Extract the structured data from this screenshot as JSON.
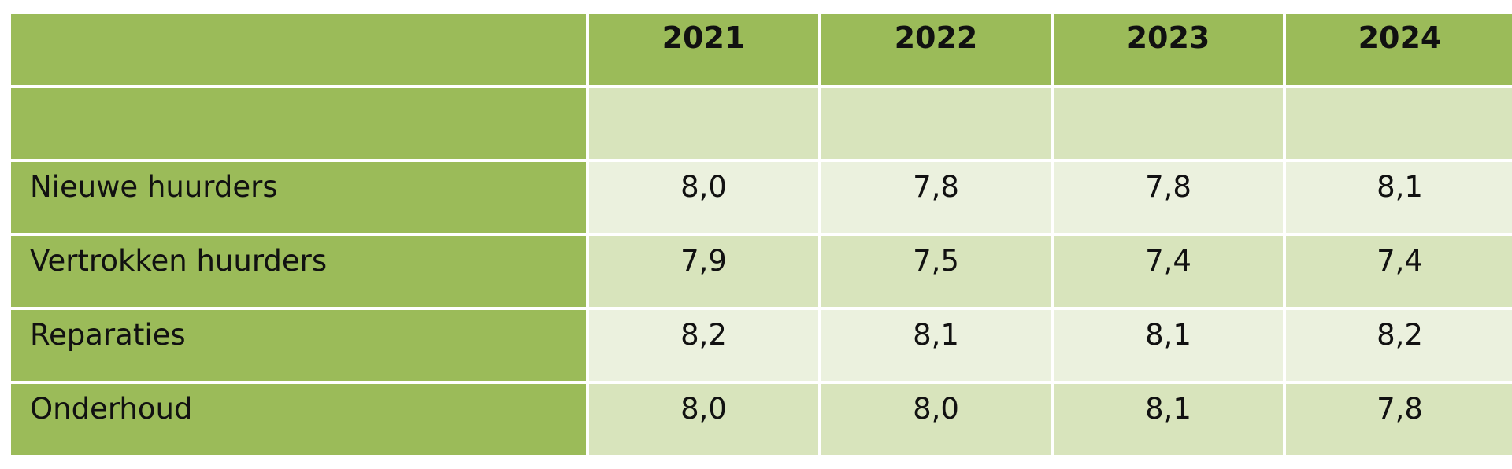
{
  "table": {
    "columns": [
      "2021",
      "2022",
      "2023",
      "2024"
    ],
    "rows": [
      {
        "label": "",
        "values": [
          "",
          "",
          "",
          ""
        ]
      },
      {
        "label": "Nieuwe huurders",
        "values": [
          "8,0",
          "7,8",
          "7,8",
          "8,1"
        ]
      },
      {
        "label": "Vertrokken huurders",
        "values": [
          "7,9",
          "7,5",
          "7,4",
          "7,4"
        ]
      },
      {
        "label": "Reparaties",
        "values": [
          "8,2",
          "8,1",
          "8,1",
          "8,2"
        ]
      },
      {
        "label": "Onderhoud",
        "values": [
          "8,0",
          "8,0",
          "8,1",
          "7,8"
        ]
      }
    ]
  },
  "colors": {
    "header_green": "#9bbb59",
    "band_dark": "#d8e4bc",
    "band_light": "#ebf1de"
  }
}
